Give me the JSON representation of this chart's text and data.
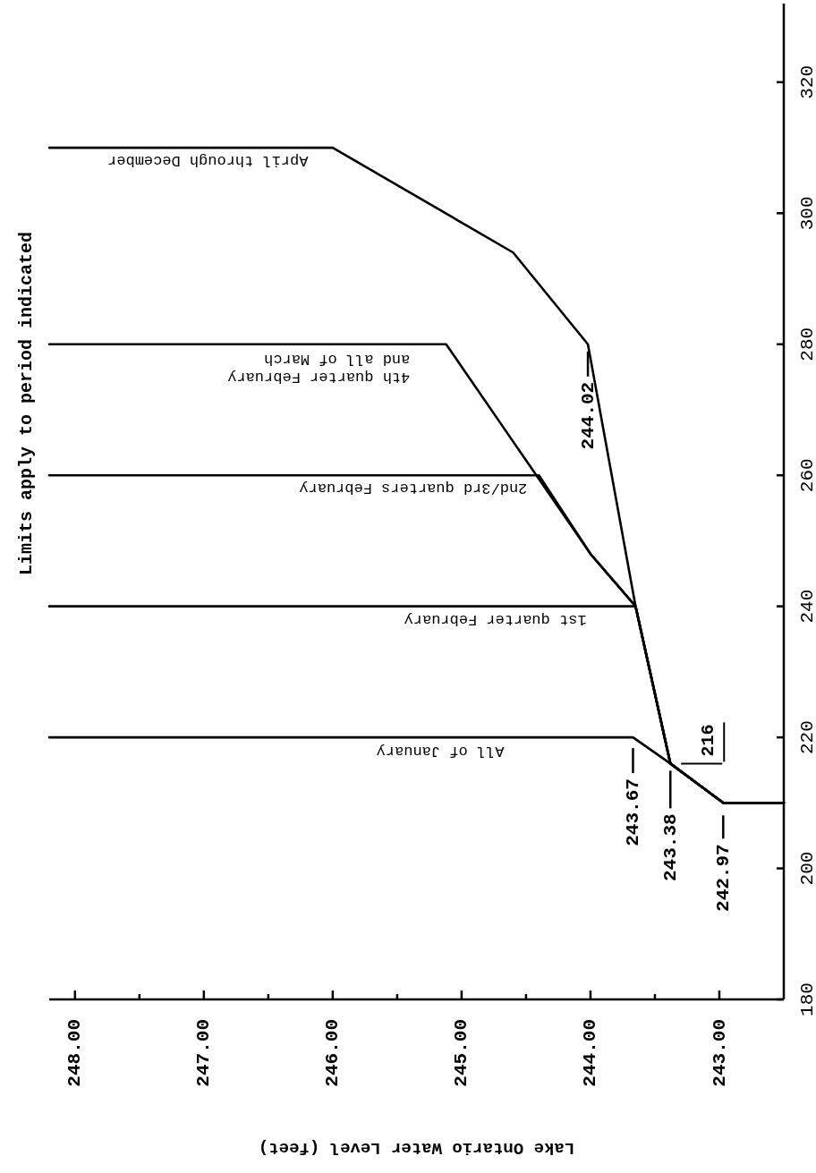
{
  "chart_data": {
    "type": "line",
    "title": "Limits apply to period indicated",
    "xlabel": "Lake Ontario Water Level (feet)",
    "ylim": [
      180,
      332
    ],
    "yticks": [
      180,
      200,
      220,
      240,
      260,
      280,
      300,
      320
    ],
    "xlim": [
      248.2,
      242.5
    ],
    "xticks": [
      {
        "value": 248,
        "label": "248.00"
      },
      {
        "value": 247.5,
        "label": null
      },
      {
        "value": 247,
        "label": "247.00"
      },
      {
        "value": 246.5,
        "label": null
      },
      {
        "value": 246,
        "label": "246.00"
      },
      {
        "value": 245.5,
        "label": null
      },
      {
        "value": 245,
        "label": "245.00"
      },
      {
        "value": 244.5,
        "label": null
      },
      {
        "value": 244,
        "label": "244.00"
      },
      {
        "value": 243.5,
        "label": null
      },
      {
        "value": 243,
        "label": "243.00"
      }
    ],
    "grid": false,
    "legend": false,
    "marker": "none",
    "line_style": "solid",
    "series": [
      {
        "name": "All of January",
        "color": "#000000",
        "x": [
          248.2,
          243.67,
          243.38,
          242.97,
          242.5
        ],
        "values": [
          220,
          220,
          216,
          210,
          210
        ]
      },
      {
        "name": "1st quarter February",
        "color": "#000000",
        "x": [
          248.2,
          243.65,
          243.38,
          242.97,
          242.5
        ],
        "values": [
          240,
          240,
          216,
          210,
          210
        ]
      },
      {
        "name": "2nd/3rd quarters February",
        "color": "#000000",
        "x": [
          248.2,
          244.4,
          244.0,
          243.65,
          243.38,
          242.97,
          242.5
        ],
        "values": [
          260,
          260,
          248,
          240,
          216,
          210,
          210
        ]
      },
      {
        "name": "4th quarter February\nand all of March",
        "color": "#000000",
        "x": [
          248.2,
          245.12,
          244.7,
          244.0,
          243.65,
          243.38,
          242.97,
          242.5
        ],
        "values": [
          280,
          280,
          268,
          248,
          240,
          216,
          210,
          210
        ]
      },
      {
        "name": "April through December",
        "color": "#000000",
        "x": [
          248.2,
          246.0,
          244.6,
          244.02,
          243.65,
          243.38,
          242.97,
          242.5
        ],
        "values": [
          310,
          310,
          294,
          280,
          240,
          216,
          210,
          210
        ]
      }
    ],
    "annotations": [
      {
        "text": "243.67",
        "x": 243.67,
        "y": 220
      },
      {
        "text": "243.38",
        "x": 243.38,
        "y": 216
      },
      {
        "text": "242.97",
        "x": 242.97,
        "y": 210
      },
      {
        "text": "216",
        "x": 243.38,
        "y": 216
      },
      {
        "text": "244.02",
        "x": 244.02,
        "y": 280
      }
    ]
  }
}
